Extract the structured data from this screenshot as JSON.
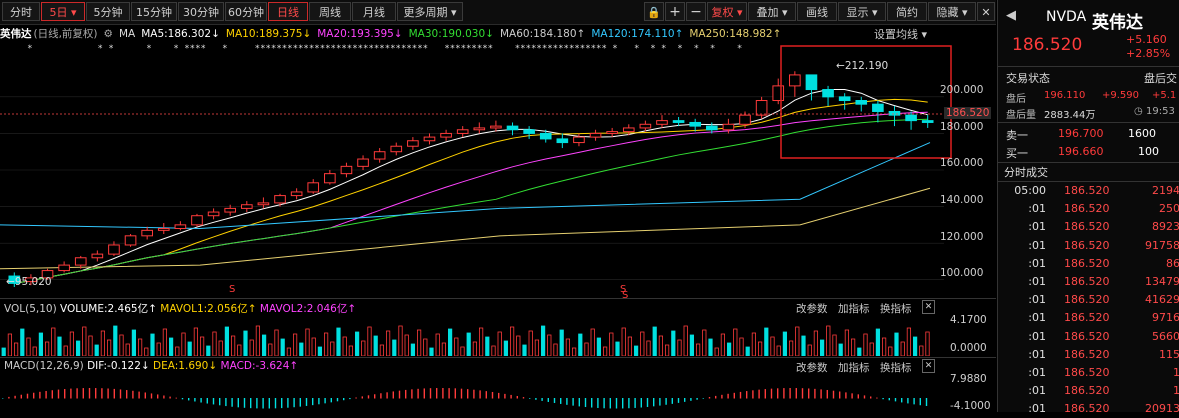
{
  "toolbar": {
    "left_tabs": [
      "分时",
      "5日",
      "5分钟",
      "15分钟",
      "30分钟",
      "60分钟"
    ],
    "period_tabs": [
      "日线",
      "周线",
      "月线",
      "更多周期"
    ],
    "right_buttons": [
      "复权",
      "叠加",
      "画线",
      "显示",
      "简约",
      "隐藏"
    ],
    "icons": [
      "lock-icon",
      "plus-icon",
      "minus-icon"
    ]
  },
  "ma_line": {
    "name": "英伟达",
    "desc": "(日线,前复权)",
    "ma": "MA",
    "items": [
      {
        "label": "MA5:186.302",
        "arrow": "↓",
        "color": "#ffffff"
      },
      {
        "label": "MA10:189.375",
        "arrow": "↓",
        "color": "#ffd200"
      },
      {
        "label": "MA20:193.395",
        "arrow": "↓",
        "color": "#ff44ff"
      },
      {
        "label": "MA30:190.030",
        "arrow": "↓",
        "color": "#33dd33"
      },
      {
        "label": "MA60:184.180",
        "arrow": "↑",
        "color": "#cccccc"
      },
      {
        "label": "MA120:174.110",
        "arrow": "↑",
        "color": "#33c8ff"
      },
      {
        "label": "MA250:148.982",
        "arrow": "↑",
        "color": "#e6d070"
      }
    ],
    "settings": "设置均线"
  },
  "chart_data": {
    "type": "candlestick",
    "ylim": [
      90,
      230
    ],
    "yticks": [
      "200.000",
      "180.000",
      "160.000",
      "140.000",
      "120.000",
      "100.000"
    ],
    "current_price_label": "186.520",
    "high_annotation": "212.190",
    "low_annotation": "95.020",
    "s_markers": [
      "S",
      "S",
      "S"
    ],
    "candles_approx": [
      [
        102,
        98,
        104,
        96
      ],
      [
        99,
        101,
        103,
        97
      ],
      [
        101,
        105,
        106,
        100
      ],
      [
        105,
        108,
        110,
        104
      ],
      [
        108,
        112,
        113,
        106
      ],
      [
        112,
        114,
        116,
        110
      ],
      [
        114,
        119,
        121,
        113
      ],
      [
        119,
        124,
        125,
        118
      ],
      [
        124,
        127,
        129,
        122
      ],
      [
        127,
        128,
        131,
        125
      ],
      [
        128,
        130,
        132,
        127
      ],
      [
        130,
        135,
        136,
        129
      ],
      [
        135,
        137,
        139,
        133
      ],
      [
        137,
        139,
        141,
        135
      ],
      [
        139,
        141,
        143,
        137
      ],
      [
        141,
        142,
        145,
        139
      ],
      [
        142,
        146,
        147,
        140
      ],
      [
        146,
        148,
        150,
        144
      ],
      [
        148,
        153,
        155,
        147
      ],
      [
        153,
        158,
        160,
        152
      ],
      [
        158,
        162,
        164,
        156
      ],
      [
        162,
        166,
        168,
        160
      ],
      [
        166,
        170,
        172,
        164
      ],
      [
        170,
        173,
        175,
        168
      ],
      [
        173,
        176,
        178,
        171
      ],
      [
        176,
        178,
        180,
        174
      ],
      [
        178,
        180,
        182,
        176
      ],
      [
        180,
        182,
        184,
        178
      ],
      [
        182,
        183,
        186,
        180
      ],
      [
        183,
        184,
        187,
        181
      ],
      [
        184,
        182,
        186,
        179
      ],
      [
        182,
        180,
        184,
        177
      ],
      [
        180,
        177,
        182,
        175
      ],
      [
        177,
        175,
        180,
        172
      ],
      [
        175,
        178,
        180,
        173
      ],
      [
        178,
        180,
        182,
        176
      ],
      [
        180,
        181,
        183,
        178
      ],
      [
        181,
        183,
        185,
        179
      ],
      [
        183,
        185,
        187,
        181
      ],
      [
        185,
        187,
        190,
        183
      ],
      [
        187,
        186,
        189,
        184
      ],
      [
        186,
        184,
        188,
        181
      ],
      [
        184,
        182,
        186,
        180
      ],
      [
        182,
        185,
        188,
        180
      ],
      [
        185,
        190,
        192,
        183
      ],
      [
        190,
        198,
        200,
        188
      ],
      [
        198,
        206,
        210,
        196
      ],
      [
        206,
        212,
        214,
        200
      ],
      [
        212,
        204,
        212,
        198
      ],
      [
        204,
        200,
        206,
        195
      ],
      [
        200,
        198,
        202,
        193
      ],
      [
        198,
        196,
        200,
        192
      ],
      [
        196,
        192,
        198,
        186
      ],
      [
        192,
        190,
        195,
        184
      ],
      [
        190,
        187,
        192,
        182
      ],
      [
        187,
        186,
        190,
        183
      ]
    ],
    "ma_labels": [
      "MA5",
      "MA10",
      "MA20",
      "MA30",
      "MA60",
      "MA120",
      "MA250"
    ]
  },
  "volume_panel": {
    "label": "VOL(5,10)",
    "volume": "VOLUME:2.465亿",
    "mavol1": "MAVOL1:2.056亿",
    "mavol2": "MAVOL2:2.046亿",
    "top_tick": "4.1700",
    "bottom_tick": "0.0000",
    "buttons": [
      "改参数",
      "加指标",
      "换指标"
    ]
  },
  "macd_panel": {
    "label": "MACD(12,26,9)",
    "dif": "DIF:-0.122",
    "dea": "DEA:1.690",
    "macd": "MACD:-3.624",
    "top_tick": "7.9880",
    "bottom_tick": "-4.1000",
    "buttons": [
      "改参数",
      "加指标",
      "换指标"
    ]
  },
  "quote": {
    "ticker": "NVDA",
    "name": "英伟达",
    "price": "186.520",
    "change": "+5.160",
    "change_pct": "+2.85%",
    "status_label": "交易状态",
    "status_value": "盘后交",
    "after_label": "盘后",
    "after_price": "196.110",
    "after_change": "+9.590",
    "after_pct": "+5.1",
    "after_vol_label": "盘后量",
    "after_vol": "2883.44万",
    "after_time": "19:53",
    "sell1_label": "卖一",
    "sell1_price": "196.700",
    "sell1_vol": "1600",
    "buy1_label": "买一",
    "buy1_price": "196.660",
    "buy1_vol": "100",
    "trades_title": "分时成交",
    "trades": [
      {
        "t": "05:00",
        "p": "186.520",
        "v": "2194"
      },
      {
        "t": ":01",
        "p": "186.520",
        "v": "250"
      },
      {
        "t": ":01",
        "p": "186.520",
        "v": "8923"
      },
      {
        "t": ":01",
        "p": "186.520",
        "v": "91758"
      },
      {
        "t": ":01",
        "p": "186.520",
        "v": "86"
      },
      {
        "t": ":01",
        "p": "186.520",
        "v": "13479"
      },
      {
        "t": ":01",
        "p": "186.520",
        "v": "41629"
      },
      {
        "t": ":01",
        "p": "186.520",
        "v": "9716"
      },
      {
        "t": ":01",
        "p": "186.520",
        "v": "5660"
      },
      {
        "t": ":01",
        "p": "186.520",
        "v": "115"
      },
      {
        "t": ":01",
        "p": "186.520",
        "v": "1"
      },
      {
        "t": ":01",
        "p": "186.520",
        "v": "1"
      },
      {
        "t": ":01",
        "p": "186.520",
        "v": "20913"
      }
    ]
  }
}
